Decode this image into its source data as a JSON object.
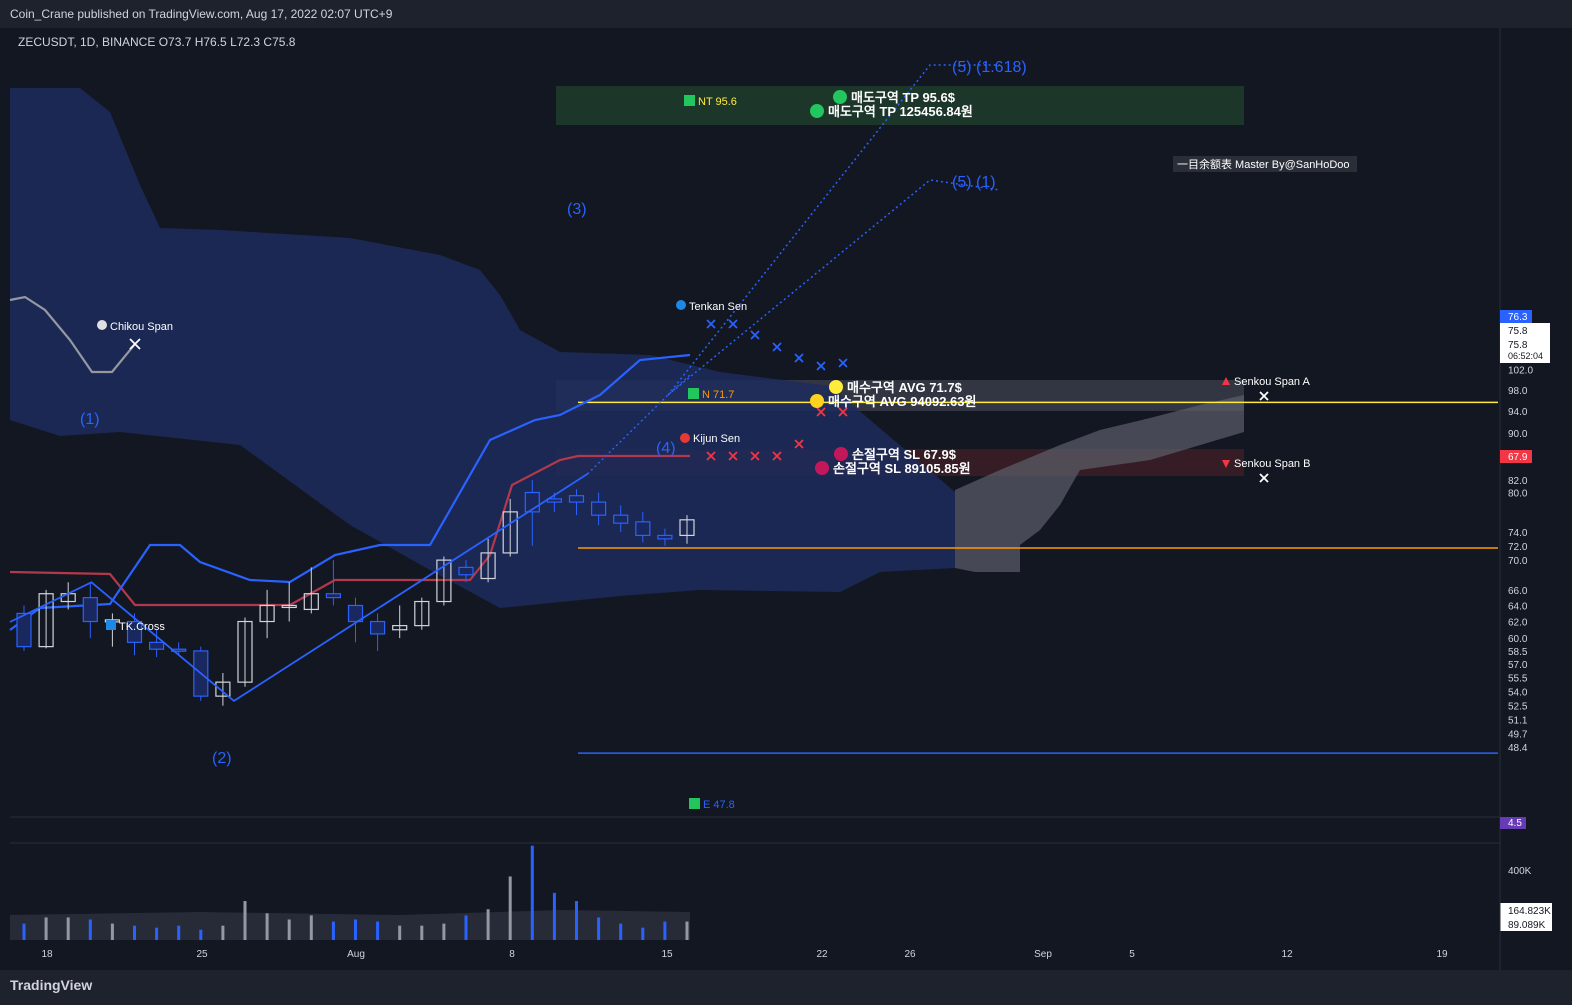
{
  "header": {
    "published": "Coin_Crane published on TradingView.com, Aug 17, 2022 02:07 UTC+9",
    "symbol_line": "ZECUSDT, 1D, BINANCE  O73.7  H76.5  L72.3  C75.8"
  },
  "footer": {
    "logo": "TradingView"
  },
  "colors": {
    "bg": "#131722",
    "up": "#2962ff",
    "white_candle": "#d1d4dc",
    "tp_line": "#ffeb3b",
    "avg_line": "#ff9800",
    "kijun": "#b2394b",
    "tenkan": "#2962ff",
    "cloud": "#1c2b5c"
  },
  "chart_data": {
    "type": "candlestick",
    "title": "ZECUSDT, 1D, BINANCE",
    "scale": "log",
    "ylim": [
      46.5,
      103.5
    ],
    "price_ticks": [
      102.0,
      98.0,
      94.0,
      90.0,
      86.0,
      82.0,
      80.0,
      76.3,
      75.8,
      74.0,
      72.0,
      70.0,
      67.9,
      66.0,
      64.0,
      62.0,
      60.0,
      58.5,
      57.0,
      55.5,
      54.0,
      52.5,
      51.1,
      49.7,
      48.4,
      4.5
    ],
    "price_labels": {
      "current": "76.3",
      "close": "75.8",
      "countdown_price": "75.8",
      "countdown": "06:52:04",
      "sl": "67.9",
      "osc": "4.5"
    },
    "x_ticks": [
      "18",
      "25",
      "Aug",
      "8",
      "15",
      "22",
      "26",
      "Sep",
      "5",
      "12",
      "19"
    ],
    "candles": [
      [
        63.0,
        59.0,
        64.0,
        58.5
      ],
      [
        59.0,
        65.5,
        66.0,
        58.8
      ],
      [
        64.5,
        65.5,
        67.0,
        63.5
      ],
      [
        65.0,
        62.0,
        67.0,
        60.0
      ],
      [
        62.0,
        62.2,
        63.0,
        59.0
      ],
      [
        62.0,
        59.5,
        63.0,
        58.0
      ],
      [
        59.5,
        58.7,
        61.0,
        57.8
      ],
      [
        58.7,
        58.5,
        59.5,
        58.0
      ],
      [
        58.5,
        53.5,
        59.0,
        53.0
      ],
      [
        53.5,
        55.0,
        56.0,
        52.5
      ],
      [
        55.0,
        62.0,
        62.5,
        54.5
      ],
      [
        62.0,
        64.0,
        66.0,
        60.0
      ],
      [
        64.0,
        64.0,
        67.0,
        62.0
      ],
      [
        63.5,
        65.5,
        69.0,
        63.0
      ],
      [
        65.5,
        65.0,
        70.0,
        64.0
      ],
      [
        64.0,
        62.0,
        65.0,
        59.5
      ],
      [
        62.0,
        60.5,
        63.0,
        58.5
      ],
      [
        61.0,
        61.5,
        64.0,
        60.0
      ],
      [
        61.5,
        64.5,
        65.0,
        61.0
      ],
      [
        64.5,
        70.0,
        70.5,
        64.0
      ],
      [
        69.0,
        68.0,
        70.0,
        67.0
      ],
      [
        67.5,
        71.0,
        73.0,
        67.0
      ],
      [
        71.0,
        77.0,
        79.0,
        70.5
      ],
      [
        80.0,
        77.0,
        82.0,
        72.0
      ],
      [
        79.0,
        78.5,
        80.0,
        77.0
      ],
      [
        79.5,
        78.5,
        80.5,
        76.5
      ],
      [
        78.5,
        76.5,
        80.0,
        75.0
      ],
      [
        76.5,
        75.3,
        78.0,
        74.0
      ],
      [
        75.5,
        73.5,
        77.0,
        72.5
      ],
      [
        73.5,
        73.0,
        74.5,
        72.0
      ],
      [
        73.5,
        75.8,
        76.5,
        72.3
      ]
    ],
    "volumes": [
      8,
      11,
      11,
      10,
      8,
      7,
      6,
      7,
      5,
      7,
      19,
      13,
      10,
      12,
      9,
      10,
      9,
      7,
      7,
      8,
      12,
      15,
      31,
      46,
      23,
      19,
      11,
      8,
      6,
      9,
      9
    ],
    "volume_labels": {
      "tick": "400K",
      "v1": "164.823K",
      "v2": "89.089K"
    },
    "tp_price": 95.6,
    "avg_price": 71.7,
    "e_price": 47.8,
    "wave_points": {
      "1": 67.0,
      "2": 53.0,
      "3": 83.0,
      "4": 71.7,
      "5a": 90.0,
      "5b": 100.0
    },
    "annotations": {
      "tp_usd": "매도구역 TP 95.6$",
      "tp_krw": "매도구역 TP 125456.84원",
      "avg_usd": "매수구역 AVG 71.7$",
      "avg_krw": "매수구역 AVG 94092.63원",
      "sl_usd": "손절구역 SL 67.9$",
      "sl_krw": "손절구역 SL 89105.85원",
      "nt": "NT 95.6",
      "n": "N 71.7",
      "e": "E 47.8",
      "wave1": "(1)",
      "wave2": "(2)",
      "wave3": "(3)",
      "wave4": "(4)",
      "wave5_1618": "(5) (1.618)",
      "wave5_1": "(5) (1)",
      "tenkan": "Tenkan Sen",
      "kijun": "Kijun Sen",
      "chikou": "Chikou Span",
      "tkcross": "TK.Cross",
      "senkou_a": "Senkou Span A",
      "senkou_b": "Senkou Span B",
      "master": "一目余额表 Master By@SanHoDoo"
    }
  }
}
